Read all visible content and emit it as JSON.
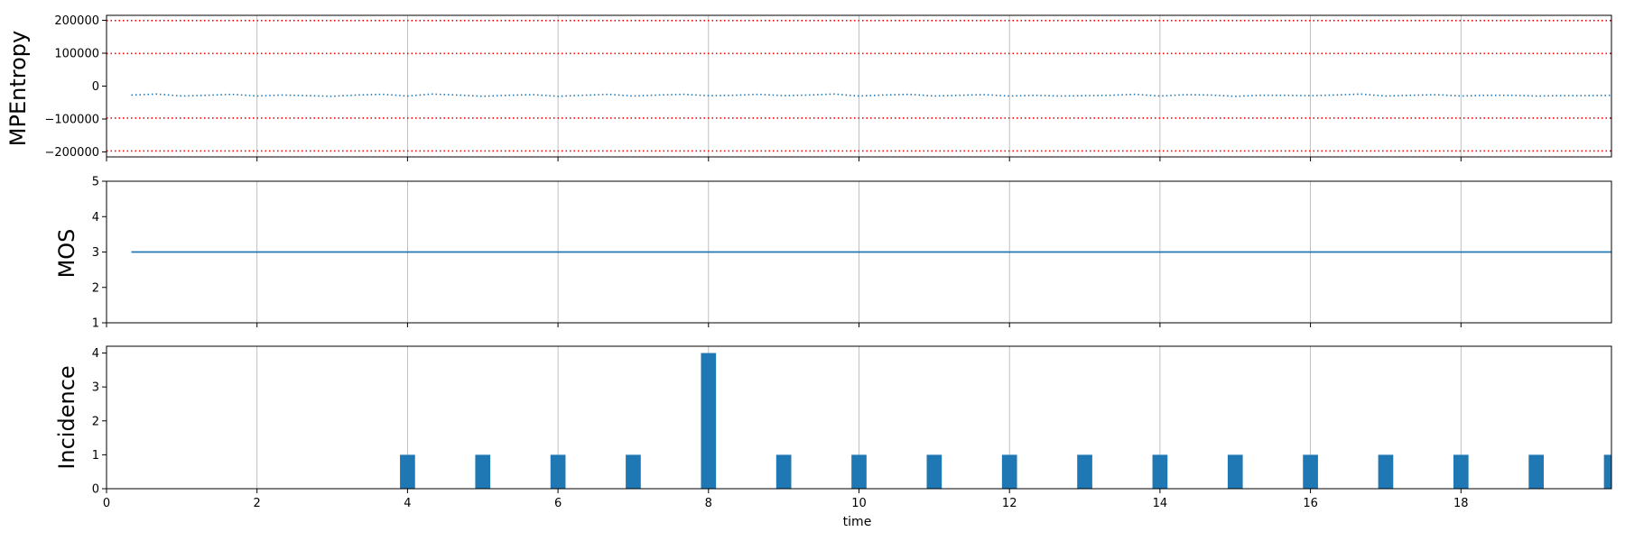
{
  "chart_data": [
    {
      "type": "line",
      "ylabel": "MPEntropy",
      "xlabel": "",
      "xlim": [
        0,
        20
      ],
      "ylim": [
        -215000,
        215000
      ],
      "yticks": [
        -200000,
        -100000,
        0,
        100000,
        200000
      ],
      "ytick_labels": [
        "−200000",
        "−100000",
        "0",
        "100000",
        "200000"
      ],
      "xticks": [
        0,
        2,
        4,
        6,
        8,
        10,
        12,
        14,
        16,
        18
      ],
      "grid": "x",
      "threshold_lines": [
        -197000,
        -97000,
        99000,
        199000
      ],
      "threshold_color": "#ff0000",
      "series": [
        {
          "style": "dotted",
          "color": "#1f77b4",
          "x": [
            0.33,
            0.67,
            1.0,
            1.33,
            1.67,
            2.0,
            2.33,
            2.67,
            3.0,
            3.33,
            3.67,
            4.0,
            4.33,
            4.67,
            5.0,
            5.33,
            5.67,
            6.0,
            6.33,
            6.67,
            7.0,
            7.33,
            7.67,
            8.0,
            8.33,
            8.67,
            9.0,
            9.33,
            9.67,
            10.0,
            10.33,
            10.67,
            11.0,
            11.33,
            11.67,
            12.0,
            12.33,
            12.67,
            13.0,
            13.33,
            13.67,
            14.0,
            14.33,
            14.67,
            15.0,
            15.33,
            15.67,
            16.0,
            16.33,
            16.67,
            17.0,
            17.33,
            17.67,
            18.0,
            18.33,
            18.67,
            19.0,
            19.33,
            19.67,
            20.0
          ],
          "y": [
            -27000,
            -24000,
            -30000,
            -28000,
            -25000,
            -30000,
            -27000,
            -29000,
            -31000,
            -27000,
            -25000,
            -30000,
            -24000,
            -27000,
            -31000,
            -28000,
            -26000,
            -31000,
            -28000,
            -25000,
            -30000,
            -27000,
            -25000,
            -29000,
            -28000,
            -25000,
            -29000,
            -27000,
            -24000,
            -30000,
            -27000,
            -25000,
            -30000,
            -28000,
            -26000,
            -30000,
            -28000,
            -30000,
            -29000,
            -28000,
            -25000,
            -30000,
            -26000,
            -27000,
            -31000,
            -28000,
            -28000,
            -29000,
            -27000,
            -24000,
            -30000,
            -28000,
            -26000,
            -30000,
            -28000,
            -28000,
            -30000,
            -29000,
            -29000,
            -28000
          ]
        }
      ]
    },
    {
      "type": "line",
      "ylabel": "MOS",
      "xlabel": "",
      "xlim": [
        0,
        20
      ],
      "ylim": [
        1,
        5
      ],
      "yticks": [
        1,
        2,
        3,
        4,
        5
      ],
      "ytick_labels": [
        "1",
        "2",
        "3",
        "4",
        "5"
      ],
      "xticks": [
        0,
        2,
        4,
        6,
        8,
        10,
        12,
        14,
        16,
        18
      ],
      "grid": "x",
      "series": [
        {
          "style": "solid",
          "color": "#1f77b4",
          "x": [
            0.33,
            20.0
          ],
          "y": [
            3,
            3
          ]
        }
      ]
    },
    {
      "type": "bar",
      "ylabel": "Incidence",
      "xlabel": "time",
      "xlim": [
        0,
        20
      ],
      "ylim": [
        0,
        4.2
      ],
      "yticks": [
        0,
        1,
        2,
        3,
        4
      ],
      "ytick_labels": [
        "0",
        "1",
        "2",
        "3",
        "4"
      ],
      "xticks": [
        0,
        2,
        4,
        6,
        8,
        10,
        12,
        14,
        16,
        18
      ],
      "xtick_labels": [
        "0",
        "2",
        "4",
        "6",
        "8",
        "10",
        "12",
        "14",
        "16",
        "18"
      ],
      "grid": "x",
      "bar_color": "#1f77b4",
      "bar_width": 0.2,
      "x": [
        4,
        5,
        6,
        7,
        8,
        9,
        10,
        11,
        12,
        13,
        14,
        15,
        16,
        17,
        18,
        19,
        20
      ],
      "values": [
        1,
        1,
        1,
        1,
        4,
        1,
        1,
        1,
        1,
        1,
        1,
        1,
        1,
        1,
        1,
        1,
        1
      ]
    }
  ]
}
